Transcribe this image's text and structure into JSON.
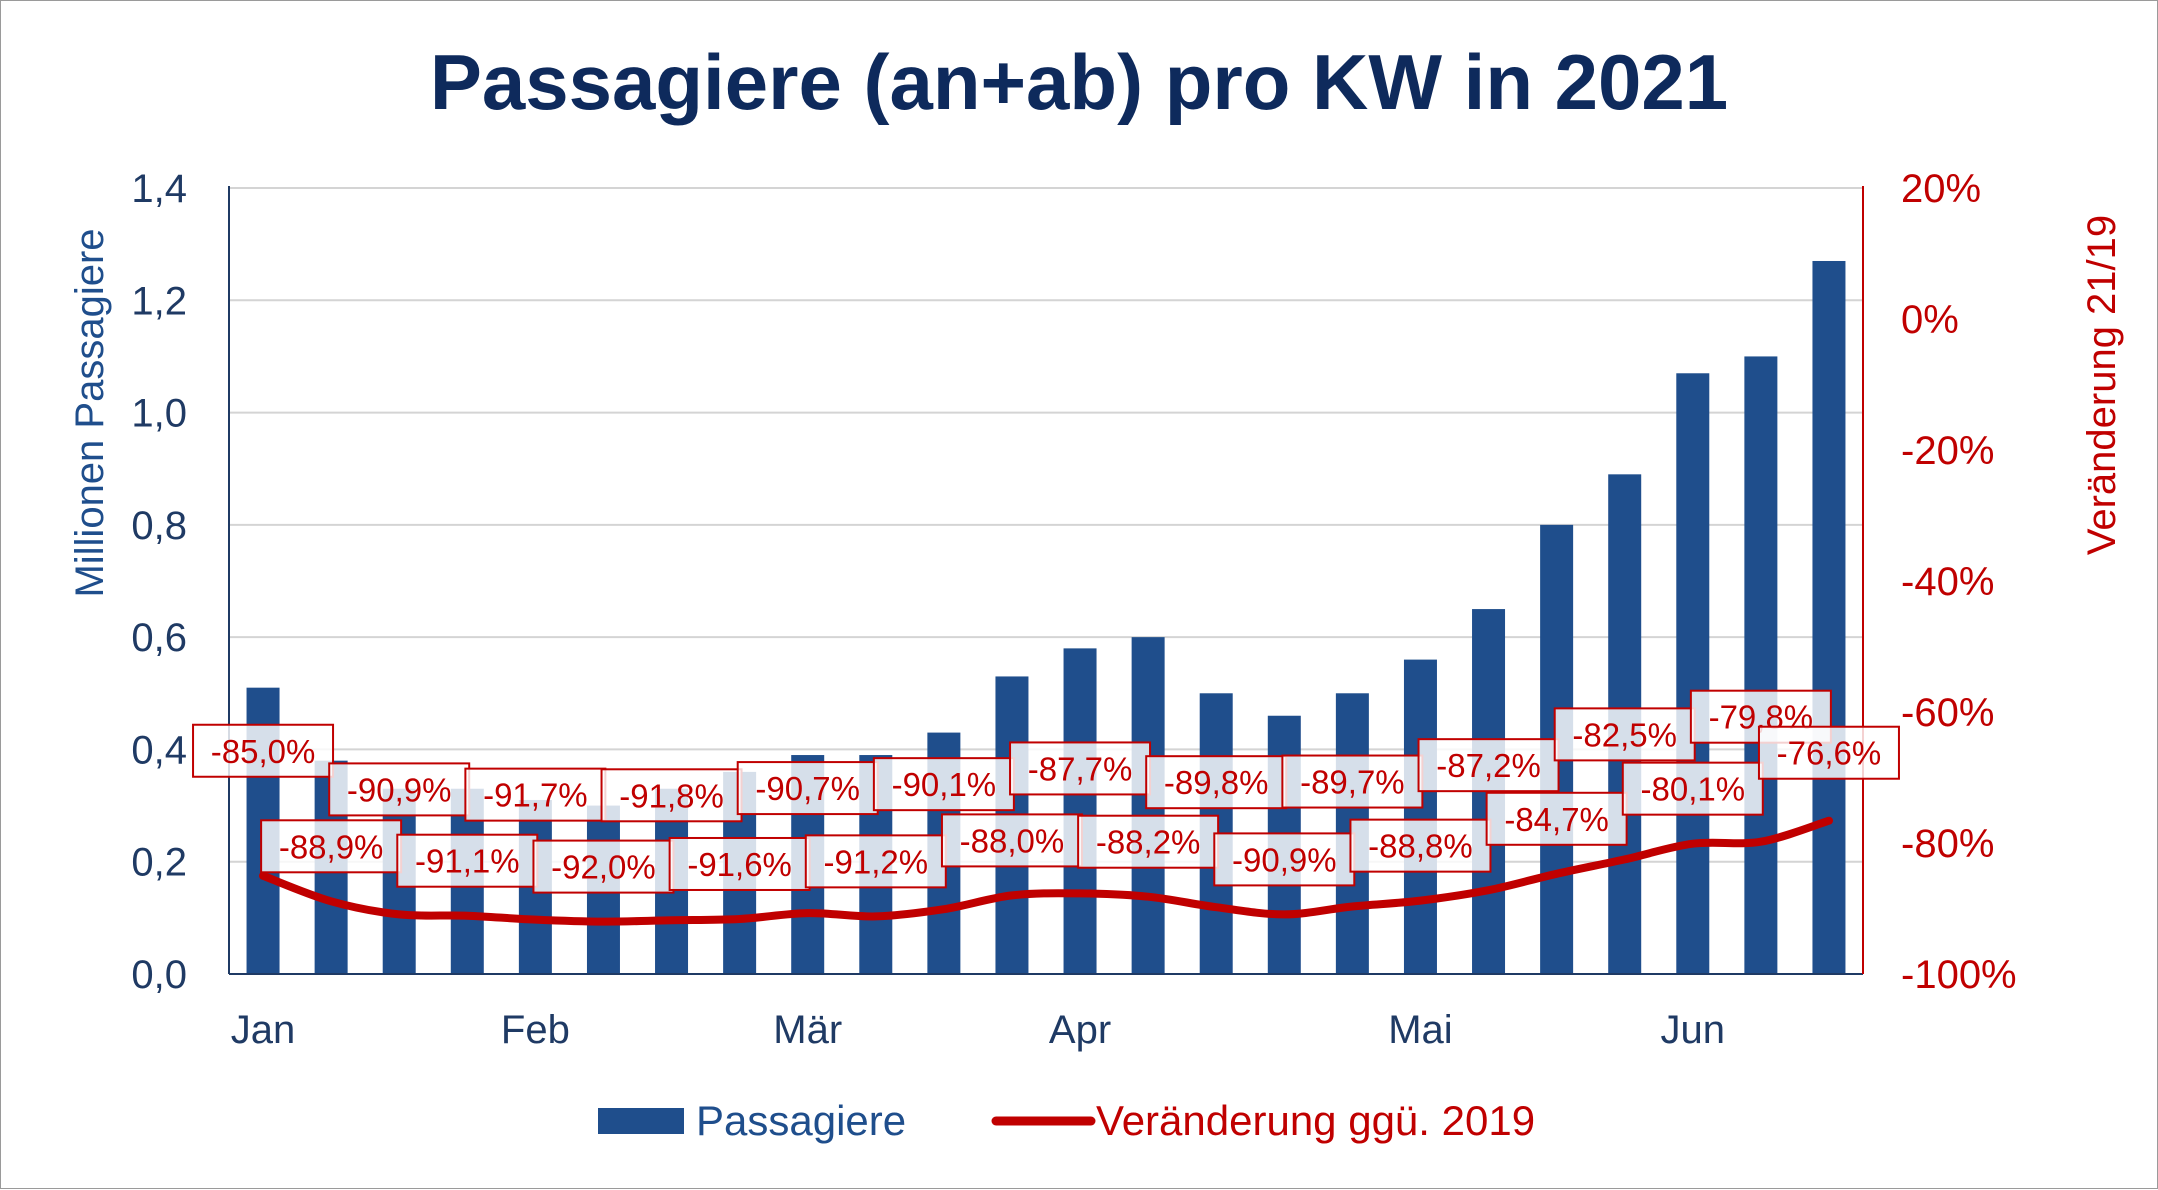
{
  "chart_data": {
    "type": "bar",
    "title": "Passagiere (an+ab) pro KW in 2021",
    "ylabel": "Millionen Passagiere",
    "y2label": "Veränderung 21/19",
    "ylim": [
      0,
      1.4
    ],
    "y2lim": [
      -100,
      20
    ],
    "yticks": [
      "0,0",
      "0,2",
      "0,4",
      "0,6",
      "0,8",
      "1,0",
      "1,2",
      "1,4"
    ],
    "y2ticks": [
      "-100%",
      "-80%",
      "-60%",
      "-40%",
      "-20%",
      "0%",
      "20%"
    ],
    "month_labels": [
      {
        "label": "Jan",
        "index": 0
      },
      {
        "label": "Feb",
        "index": 4
      },
      {
        "label": "Mär",
        "index": 8
      },
      {
        "label": "Apr",
        "index": 12
      },
      {
        "label": "Mai",
        "index": 17
      },
      {
        "label": "Jun",
        "index": 21
      }
    ],
    "series": [
      {
        "name": "Passagiere",
        "type": "bar",
        "color": "#1f4e8c",
        "values": [
          0.51,
          0.38,
          0.33,
          0.33,
          0.31,
          0.3,
          0.33,
          0.36,
          0.39,
          0.39,
          0.43,
          0.53,
          0.58,
          0.6,
          0.5,
          0.46,
          0.5,
          0.56,
          0.65,
          0.8,
          0.89,
          1.07,
          1.1,
          1.27
        ]
      },
      {
        "name": "Veränderung ggü. 2019",
        "type": "line",
        "color": "#c00000",
        "values": [
          -85.0,
          -88.9,
          -90.9,
          -91.1,
          -91.7,
          -92.0,
          -91.8,
          -91.6,
          -90.7,
          -91.2,
          -90.1,
          -88.0,
          -87.7,
          -88.2,
          -89.8,
          -90.9,
          -89.7,
          -88.8,
          -87.2,
          -84.7,
          -82.5,
          -80.1,
          -79.8,
          -76.6
        ],
        "labels": [
          "-85,0%",
          "-88,9%",
          "-90,9%",
          "-91,1%",
          "-91,7%",
          "-92,0%",
          "-91,8%",
          "-91,6%",
          "-90,7%",
          "-91,2%",
          "-90,1%",
          "-88,0%",
          "-87,7%",
          "-88,2%",
          "-89,8%",
          "-90,9%",
          "-89,7%",
          "-88,8%",
          "-87,2%",
          "-84,7%",
          "-82,5%",
          "-80,1%",
          "-79,8%",
          "-76,6%"
        ]
      }
    ],
    "legend": [
      "Passagiere",
      "Veränderung ggü. 2019"
    ],
    "legend_position": "bottom",
    "grid": true
  }
}
